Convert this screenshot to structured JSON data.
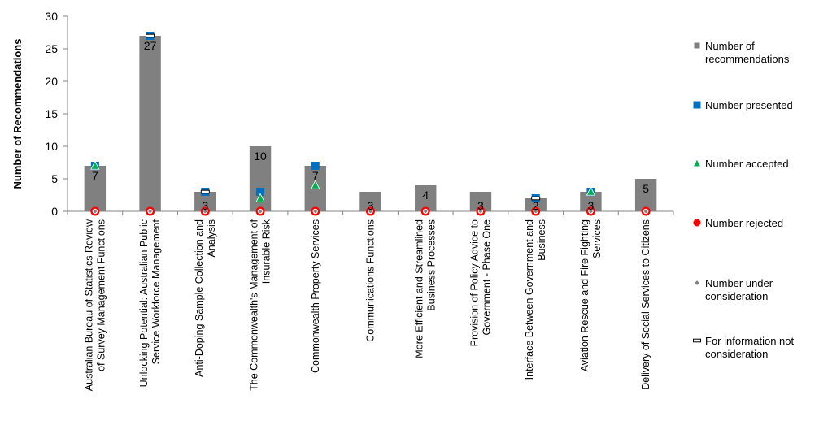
{
  "chart_data": {
    "type": "bar",
    "title": "",
    "xlabel": "",
    "ylabel": "Number of Recommendations",
    "ylim": [
      0,
      30
    ],
    "yticks": [
      0,
      5,
      10,
      15,
      20,
      25,
      30
    ],
    "grid": false,
    "legend_position": "right",
    "categories": [
      [
        "Australian Bureau of Statistics Review",
        "of Survey Management Functions"
      ],
      [
        "Unlocking Potential: Australian Public",
        "Service Workforce Management"
      ],
      [
        "Anti-Doping Sample Collection and",
        "Analysis"
      ],
      [
        "The Commonwealth's Management of",
        "Insurable Risk"
      ],
      [
        "Commonwealth Property Services"
      ],
      [
        "Communications Functions"
      ],
      [
        "More Efficient and Streamlined",
        "Business Processes"
      ],
      [
        "Provision of Policy Advice to",
        "Government - Phase One"
      ],
      [
        "Interface Between Government and",
        "Business"
      ],
      [
        "Aviation Rescue and Fire Fighting",
        "Services"
      ],
      [
        "Delivery of Social Services to Citizens"
      ]
    ],
    "series": [
      {
        "name": [
          "Number of",
          "recommendations"
        ],
        "type": "bar",
        "color": "#808080",
        "values": [
          7,
          27,
          3,
          10,
          7,
          3,
          4,
          3,
          2,
          3,
          5
        ]
      },
      {
        "name": [
          "Number presented"
        ],
        "type": "marker",
        "marker": "square",
        "color": "#0070C0",
        "values": [
          7,
          27,
          3,
          3,
          7,
          null,
          null,
          null,
          2,
          3,
          null
        ]
      },
      {
        "name": [
          "Number accepted"
        ],
        "type": "marker",
        "marker": "triangle",
        "color": "#00B050",
        "values": [
          7,
          null,
          null,
          2,
          4,
          null,
          null,
          null,
          null,
          3,
          null
        ]
      },
      {
        "name": [
          "Number rejected"
        ],
        "type": "marker",
        "marker": "circle",
        "color": "#FF0000",
        "values": [
          0,
          0,
          0,
          0,
          0,
          0,
          0,
          0,
          0,
          0,
          0
        ]
      },
      {
        "name": [
          "Number under",
          "consideration"
        ],
        "type": "marker",
        "marker": "diamond",
        "color": "#7F7F7F",
        "values": [
          0,
          0,
          0,
          0,
          0,
          0,
          0,
          0,
          0,
          0,
          0
        ]
      },
      {
        "name": [
          "For information not",
          "consideration"
        ],
        "type": "marker",
        "marker": "dash",
        "color": "#000000",
        "values": [
          null,
          27,
          3,
          null,
          null,
          null,
          null,
          null,
          2,
          null,
          null
        ]
      }
    ],
    "data_labels": [
      7,
      27,
      3,
      10,
      7,
      3,
      4,
      3,
      2,
      3,
      5
    ]
  }
}
